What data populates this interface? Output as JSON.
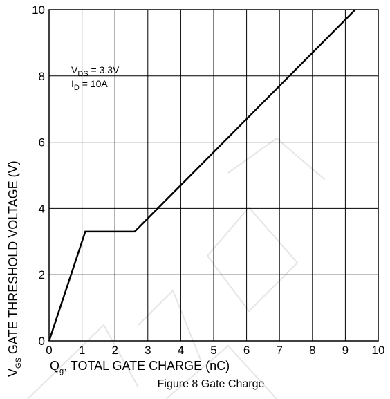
{
  "chart_data": {
    "type": "line",
    "title": "",
    "caption": "Figure 8 Gate Charge",
    "xlabel": {
      "main": "Q",
      "sub": "g",
      "rest": ", TOTAL GATE CHARGE (nC)"
    },
    "ylabel": {
      "main": "V",
      "sub": "GS",
      "rest": " GATE THRESHOLD VOLTAGE (V)"
    },
    "xlim": [
      0,
      10
    ],
    "ylim": [
      0,
      10
    ],
    "x_ticks": [
      0,
      1,
      2,
      3,
      4,
      5,
      6,
      7,
      8,
      9,
      10
    ],
    "y_ticks": [
      0,
      2,
      4,
      6,
      8,
      10
    ],
    "x_tick_labels": [
      "0",
      "1",
      "2",
      "3",
      "4",
      "5",
      "6",
      "7",
      "8",
      "9",
      "10"
    ],
    "y_tick_labels": [
      "0",
      "2",
      "4",
      "6",
      "8",
      "10"
    ],
    "grid": true,
    "annotations": [
      {
        "main": "V",
        "sub": "DS",
        "rest": " = 3.3V"
      },
      {
        "main": "I",
        "sub": "D",
        "rest": " = 10A"
      }
    ],
    "series": [
      {
        "points": [
          [
            0,
            0
          ],
          [
            1.1,
            3.3
          ],
          [
            2.6,
            3.3
          ],
          [
            9.3,
            10
          ]
        ]
      }
    ]
  }
}
